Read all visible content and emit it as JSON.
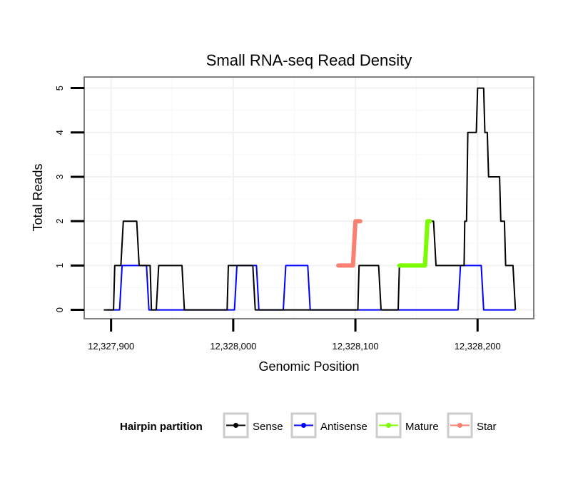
{
  "chart_data": {
    "type": "line",
    "title": "Small RNA-seq Read Density",
    "xlabel": "Genomic Position",
    "ylabel": "Total Reads",
    "xlim": [
      12327878,
      12328246
    ],
    "ylim": [
      -0.2,
      5.25
    ],
    "x_ticks": [
      12327900,
      12328000,
      12328100,
      12328200
    ],
    "x_tick_labels": [
      "12,327,900",
      "12,328,000",
      "12,328,100",
      "12,328,200"
    ],
    "y_ticks": [
      0,
      1,
      2,
      3,
      4,
      5
    ],
    "y_tick_labels": [
      "0",
      "1",
      "2",
      "3",
      "4",
      "5"
    ],
    "grid": true,
    "legend": {
      "title": "Hairpin partition",
      "position": "bottom",
      "entries": [
        {
          "name": "Sense",
          "color": "#000000"
        },
        {
          "name": "Antisense",
          "color": "#0000ff"
        },
        {
          "name": "Mature",
          "color": "#7cfc00"
        },
        {
          "name": "Star",
          "color": "#fa8072"
        }
      ]
    },
    "series": [
      {
        "name": "Sense",
        "color": "#000000",
        "style": "line",
        "x": [
          12327894,
          12327902,
          12327903,
          12327908,
          12327910,
          12327921,
          12327923,
          12327932,
          12327933,
          12327937,
          12327939,
          12327958,
          12327960,
          12327995,
          12327996,
          12328016,
          12328018,
          12328102,
          12328103,
          12328119,
          12328121,
          12328135,
          12328136,
          12328158,
          12328159,
          12328164,
          12328166,
          12328180,
          12328182,
          12328189,
          12328189.5,
          12328191,
          12328192,
          12328199,
          12328200,
          12328205,
          12328206,
          12328208,
          12328209,
          12328218,
          12328219,
          12328222,
          12328223,
          12328229,
          12328231
        ],
        "y": [
          0,
          0,
          1,
          1,
          2,
          2,
          1,
          1,
          0,
          0,
          1,
          1,
          0,
          0,
          1,
          1,
          0,
          0,
          1,
          1,
          0,
          0,
          1,
          1,
          2,
          2,
          1,
          1,
          1,
          1,
          2,
          2,
          4,
          4,
          5,
          5,
          4,
          4,
          3,
          3,
          2,
          2,
          1,
          1,
          0
        ]
      },
      {
        "name": "Antisense",
        "color": "#0000ff",
        "style": "line",
        "x": [
          12327897,
          12327907,
          12327909,
          12327929,
          12327931,
          12328001,
          12328003,
          12328019,
          12328021,
          12328041,
          12328043,
          12328061,
          12328063,
          12328184,
          12328186,
          12328203,
          12328205,
          12328231
        ],
        "y": [
          0,
          0,
          1,
          1,
          0,
          0,
          1,
          1,
          0,
          0,
          1,
          1,
          0,
          0,
          1,
          1,
          0,
          0
        ]
      },
      {
        "name": "Mature",
        "color": "#7cfc00",
        "style": "thick",
        "x": [
          12328136,
          12328157,
          12328159,
          12328161
        ],
        "y": [
          1,
          1,
          2,
          2
        ]
      },
      {
        "name": "Star",
        "color": "#fa8072",
        "style": "thick",
        "x": [
          12328086,
          12328098,
          12328100,
          12328104
        ],
        "y": [
          1,
          1,
          2,
          2
        ]
      }
    ]
  }
}
